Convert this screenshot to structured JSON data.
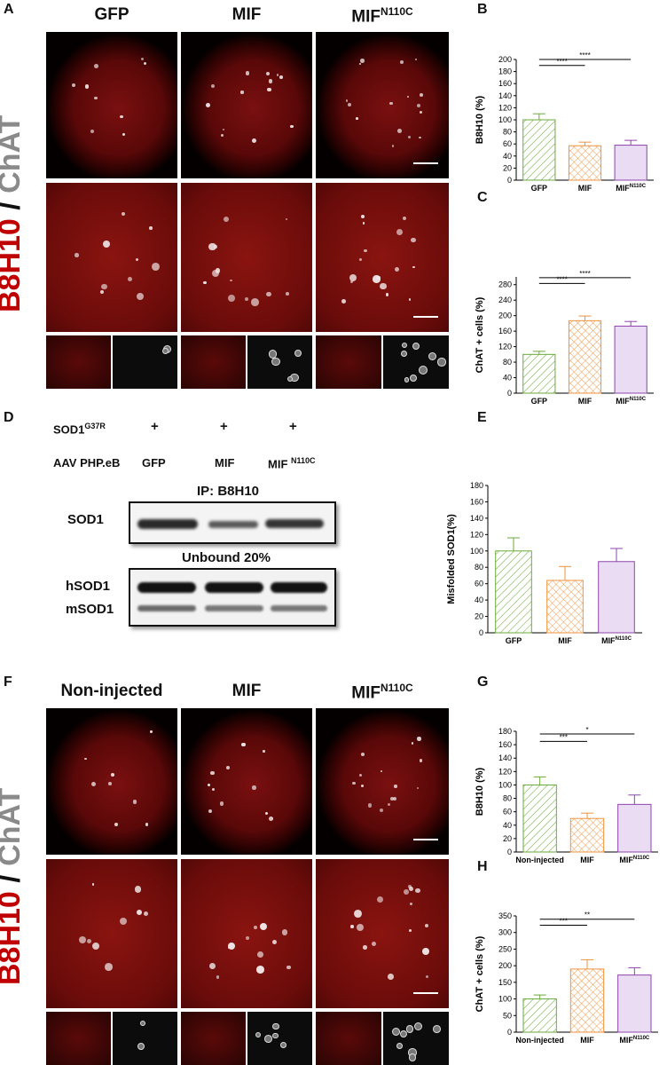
{
  "panels": {
    "A": {
      "letter": "A",
      "headers": [
        "GFP",
        "MIF",
        "MIF",
        "N110C"
      ],
      "ylabel_red": "B8H10",
      "ylabel_slash": " / ",
      "ylabel_gray": "ChAT"
    },
    "D": {
      "letter": "D",
      "row1_label": "SOD1",
      "row1_sup": "G37R",
      "plus": "+",
      "row2_label": "AAV PHP.eB",
      "lanes": [
        "GFP",
        "MIF",
        "MIF",
        "N110C"
      ],
      "ip_title": "IP: B8H10",
      "blot1_label": "SOD1",
      "unbound_title": "Unbound 20%",
      "blot2_label1": "hSOD1",
      "blot2_label2": "mSOD1"
    },
    "F": {
      "letter": "F",
      "headers": [
        "Non-injected",
        "MIF",
        "MIF",
        "N110C"
      ],
      "ylabel_red": "B8H10",
      "ylabel_slash": " / ",
      "ylabel_gray": "ChAT"
    }
  },
  "chart_data": [
    {
      "id": "B",
      "letter": "B",
      "type": "bar",
      "categories": [
        "GFP",
        "MIF",
        "MIF"
      ],
      "cat_sup": [
        "",
        "",
        "N110C"
      ],
      "values": [
        100,
        57,
        58
      ],
      "errors": [
        10,
        6,
        8
      ],
      "ylabel": "B8H10 (%)",
      "ylim": [
        0,
        200
      ],
      "ytick_step": 20,
      "colors": [
        "#6aaa3a",
        "#f0923c",
        "#8e44ad"
      ],
      "brackets": [
        {
          "from": 0,
          "to": 1,
          "label": "****"
        },
        {
          "from": 0,
          "to": 2,
          "label": "****"
        }
      ],
      "bracket_y": [
        190,
        200
      ]
    },
    {
      "id": "C",
      "letter": "C",
      "type": "bar",
      "categories": [
        "GFP",
        "MIF",
        "MIF"
      ],
      "cat_sup": [
        "",
        "",
        "N110C"
      ],
      "values": [
        100,
        187,
        173
      ],
      "errors": [
        8,
        12,
        12
      ],
      "ylabel": "ChAT + cells (%)",
      "ylim": [
        0,
        300
      ],
      "ytick_step": 40,
      "colors": [
        "#6aaa3a",
        "#f0923c",
        "#8e44ad"
      ],
      "brackets": [
        {
          "from": 0,
          "to": 1,
          "label": "****"
        },
        {
          "from": 0,
          "to": 2,
          "label": "****"
        }
      ],
      "bracket_y": [
        283,
        298
      ]
    },
    {
      "id": "E",
      "letter": "E",
      "type": "bar",
      "categories": [
        "GFP",
        "MIF",
        "MIF"
      ],
      "cat_sup": [
        "",
        "",
        "N110C"
      ],
      "values": [
        100,
        64,
        87
      ],
      "errors": [
        16,
        17,
        16
      ],
      "ylabel": "Misfolded SOD1(%)",
      "ylim": [
        0,
        180
      ],
      "ytick_step": 20,
      "colors": [
        "#6aaa3a",
        "#f0923c",
        "#8e44ad"
      ],
      "brackets": [],
      "bracket_y": []
    },
    {
      "id": "G",
      "letter": "G",
      "type": "bar",
      "categories": [
        "Non-injected",
        "MIF",
        "MIF"
      ],
      "cat_sup": [
        "",
        "",
        "N110C"
      ],
      "values": [
        100,
        50,
        71
      ],
      "errors": [
        12,
        8,
        14
      ],
      "ylabel": "B8H10 (%)",
      "ylim": [
        0,
        180
      ],
      "ytick_step": 20,
      "colors": [
        "#6aaa3a",
        "#f0923c",
        "#8e44ad"
      ],
      "brackets": [
        {
          "from": 0,
          "to": 1,
          "label": "***"
        },
        {
          "from": 0,
          "to": 2,
          "label": "*"
        }
      ],
      "bracket_y": [
        165,
        176
      ]
    },
    {
      "id": "H",
      "letter": "H",
      "type": "bar",
      "categories": [
        "Non-injected",
        "MIF",
        "MIF"
      ],
      "cat_sup": [
        "",
        "",
        "N110C"
      ],
      "values": [
        100,
        190,
        172
      ],
      "errors": [
        12,
        28,
        22
      ],
      "ylabel": "ChAT + cells (%)",
      "ylim": [
        0,
        350
      ],
      "ytick_step": 50,
      "colors": [
        "#6aaa3a",
        "#f0923c",
        "#8e44ad"
      ],
      "brackets": [
        {
          "from": 0,
          "to": 1,
          "label": "***"
        },
        {
          "from": 0,
          "to": 2,
          "label": "**"
        }
      ],
      "bracket_y": [
        322,
        340
      ]
    }
  ]
}
